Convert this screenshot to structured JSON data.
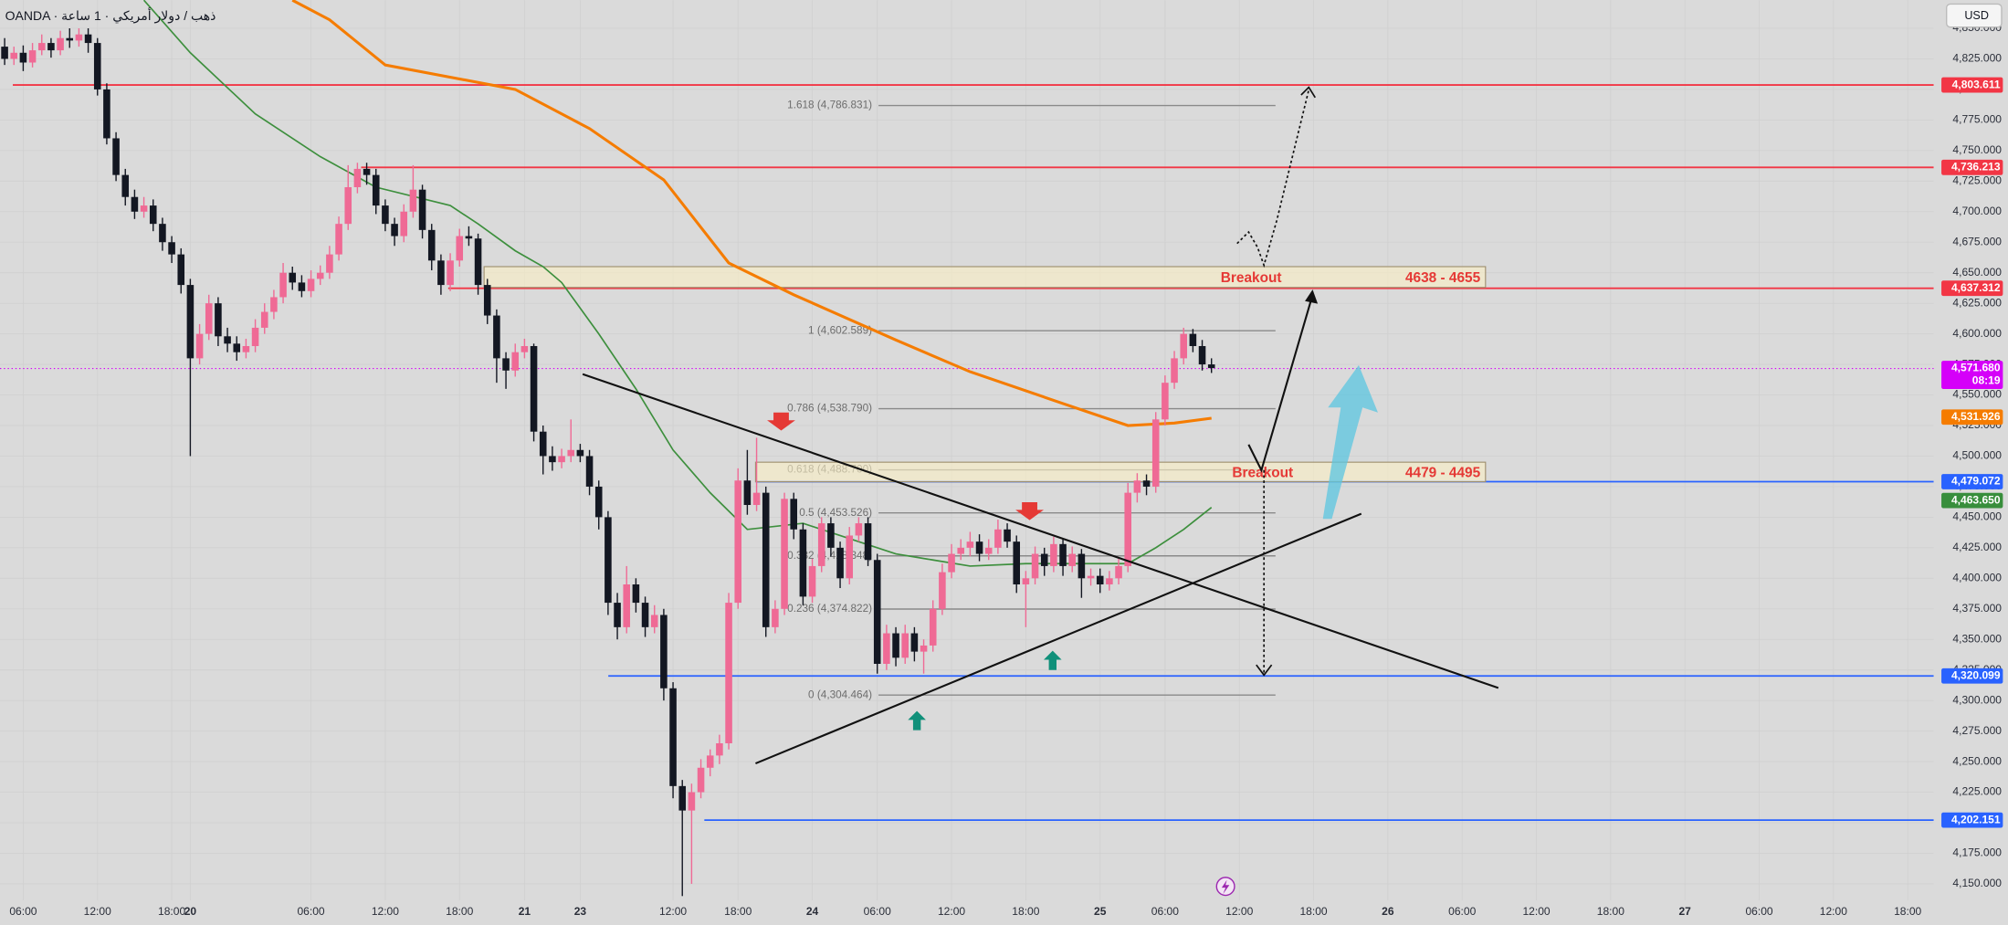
{
  "header": {
    "symbol": "OANDA · ذهب / دولار أمريكي · 1 ساعة",
    "currency": "USD"
  },
  "chart_data": {
    "type": "candlestick",
    "xlim": [
      -0.5,
      207.8
    ],
    "ylim": [
      4136.4,
      4873
    ],
    "xticks": [
      {
        "value": 2,
        "label": "06:00"
      },
      {
        "value": 10,
        "label": "12:00"
      },
      {
        "value": 18,
        "label": "18:00"
      },
      20,
      {
        "value": 33,
        "label": "06:00"
      },
      {
        "value": 41,
        "label": "12:00"
      },
      {
        "value": 49,
        "label": "18:00"
      },
      {
        "value": 56,
        "label": "21"
      },
      {
        "value": 62,
        "label": "23"
      },
      {
        "value": 72,
        "label": "12:00"
      },
      {
        "value": 79,
        "label": "18:00"
      },
      {
        "value": 87,
        "label": "24"
      },
      {
        "value": 94,
        "label": "06:00"
      },
      {
        "value": 102,
        "label": "12:00"
      },
      {
        "value": 110,
        "label": "18:00"
      },
      {
        "value": 118,
        "label": "25"
      },
      {
        "value": 125,
        "label": "06:00"
      },
      {
        "value": 133,
        "label": "12:00"
      },
      {
        "value": 141,
        "label": "18:00"
      },
      {
        "value": 149,
        "label": "26"
      },
      {
        "value": 157,
        "label": "06:00"
      },
      {
        "value": 165,
        "label": "12:00"
      },
      {
        "value": 173,
        "label": "18:00"
      },
      {
        "value": 181,
        "label": "27"
      },
      {
        "value": 189,
        "label": "06:00"
      },
      {
        "value": 197,
        "label": "12:00"
      },
      {
        "value": 205,
        "label": "18:00"
      }
    ],
    "yticks": [
      {
        "value": 4150,
        "label": "4,150.000"
      },
      {
        "value": 4175,
        "label": "4,175.000"
      },
      {
        "value": 4200,
        "label": "4,200.000"
      },
      {
        "value": 4225,
        "label": "4,225.000"
      },
      {
        "value": 4250,
        "label": "4,250.000"
      },
      {
        "value": 4275,
        "label": "4,275.000"
      },
      {
        "value": 4300,
        "label": "4,300.000"
      },
      {
        "value": 4325,
        "label": "4,325.000"
      },
      {
        "value": 4350,
        "label": "4,350.000"
      },
      {
        "value": 4375,
        "label": "4,375.000"
      },
      {
        "value": 4400,
        "label": "4,400.000"
      },
      {
        "value": 4425,
        "label": "4,425.000"
      },
      {
        "value": 4450,
        "label": "4,450.000"
      },
      {
        "value": 4475,
        "label": "4,475.000"
      },
      {
        "value": 4500,
        "label": "4,500.000"
      },
      {
        "value": 4525,
        "label": "4,525.000"
      },
      {
        "value": 4550,
        "label": "4,550.000"
      },
      {
        "value": 4575,
        "label": "4,575.000"
      },
      {
        "value": 4600,
        "label": "4,600.000"
      },
      {
        "value": 4625,
        "label": "4,625.000"
      },
      {
        "value": 4650,
        "label": "4,650.000"
      },
      {
        "value": 4675,
        "label": "4,675.000"
      },
      {
        "value": 4700,
        "label": "4,700.000"
      },
      {
        "value": 4725,
        "label": "4,725.000"
      },
      {
        "value": 4750,
        "label": "4,750.000"
      },
      {
        "value": 4775,
        "label": "4,775.000"
      },
      {
        "value": 4800,
        "label": "4,800.000"
      },
      {
        "value": 4825,
        "label": "4,825.000"
      },
      {
        "value": 4850,
        "label": "4,850.000"
      }
    ],
    "grid": true,
    "up_color": "#ef6a95",
    "down_color": "#131722",
    "ohlc": [
      [
        4835,
        4842,
        4820,
        4825
      ],
      [
        4825,
        4835,
        4820,
        4830
      ],
      [
        4830,
        4836,
        4815,
        4822
      ],
      [
        4822,
        4838,
        4818,
        4832
      ],
      [
        4832,
        4845,
        4828,
        4838
      ],
      [
        4838,
        4842,
        4826,
        4832
      ],
      [
        4832,
        4848,
        4828,
        4842
      ],
      [
        4842,
        4850,
        4834,
        4840
      ],
      [
        4840,
        4850,
        4835,
        4845
      ],
      [
        4845,
        4850,
        4830,
        4838
      ],
      [
        4838,
        4842,
        4795,
        4800
      ],
      [
        4800,
        4805,
        4755,
        4760
      ],
      [
        4760,
        4765,
        4725,
        4730
      ],
      [
        4730,
        4735,
        4705,
        4712
      ],
      [
        4712,
        4718,
        4694,
        4700
      ],
      [
        4700,
        4712,
        4695,
        4705
      ],
      [
        4705,
        4710,
        4684,
        4690
      ],
      [
        4690,
        4695,
        4668,
        4675
      ],
      [
        4675,
        4680,
        4658,
        4665
      ],
      [
        4665,
        4670,
        4633,
        4640
      ],
      [
        4640,
        4645,
        4500,
        4580
      ],
      [
        4580,
        4608,
        4575,
        4600
      ],
      [
        4600,
        4632,
        4595,
        4625
      ],
      [
        4625,
        4630,
        4590,
        4598
      ],
      [
        4598,
        4605,
        4585,
        4592
      ],
      [
        4592,
        4598,
        4578,
        4585
      ],
      [
        4585,
        4596,
        4580,
        4590
      ],
      [
        4590,
        4612,
        4585,
        4605
      ],
      [
        4605,
        4625,
        4600,
        4618
      ],
      [
        4618,
        4636,
        4612,
        4630
      ],
      [
        4630,
        4658,
        4625,
        4650
      ],
      [
        4650,
        4655,
        4636,
        4642
      ],
      [
        4642,
        4648,
        4630,
        4635
      ],
      [
        4635,
        4652,
        4630,
        4645
      ],
      [
        4645,
        4656,
        4640,
        4650
      ],
      [
        4650,
        4672,
        4645,
        4665
      ],
      [
        4665,
        4696,
        4660,
        4690
      ],
      [
        4690,
        4738,
        4685,
        4720
      ],
      [
        4720,
        4740,
        4715,
        4735
      ],
      [
        4735,
        4740,
        4722,
        4730
      ],
      [
        4730,
        4735,
        4698,
        4705
      ],
      [
        4705,
        4710,
        4684,
        4690
      ],
      [
        4690,
        4695,
        4672,
        4680
      ],
      [
        4680,
        4706,
        4675,
        4700
      ],
      [
        4700,
        4738,
        4695,
        4718
      ],
      [
        4718,
        4722,
        4678,
        4685
      ],
      [
        4685,
        4690,
        4652,
        4660
      ],
      [
        4660,
        4665,
        4632,
        4640
      ],
      [
        4640,
        4666,
        4635,
        4660
      ],
      [
        4660,
        4686,
        4655,
        4680
      ],
      [
        4680,
        4688,
        4672,
        4678
      ],
      [
        4678,
        4682,
        4632,
        4640
      ],
      [
        4640,
        4645,
        4608,
        4615
      ],
      [
        4615,
        4620,
        4560,
        4580
      ],
      [
        4580,
        4585,
        4555,
        4570
      ],
      [
        4570,
        4592,
        4565,
        4585
      ],
      [
        4585,
        4596,
        4580,
        4590
      ],
      [
        4590,
        4592,
        4512,
        4520
      ],
      [
        4520,
        4525,
        4485,
        4500
      ],
      [
        4500,
        4508,
        4488,
        4495
      ],
      [
        4495,
        4506,
        4490,
        4500
      ],
      [
        4500,
        4530,
        4495,
        4505
      ],
      [
        4505,
        4510,
        4495,
        4500
      ],
      [
        4500,
        4505,
        4468,
        4475
      ],
      [
        4475,
        4480,
        4440,
        4450
      ],
      [
        4450,
        4455,
        4370,
        4380
      ],
      [
        4380,
        4388,
        4350,
        4360
      ],
      [
        4360,
        4410,
        4355,
        4395
      ],
      [
        4395,
        4400,
        4372,
        4380
      ],
      [
        4380,
        4385,
        4352,
        4360
      ],
      [
        4360,
        4378,
        4355,
        4370
      ],
      [
        4370,
        4375,
        4300,
        4310
      ],
      [
        4310,
        4315,
        4220,
        4230
      ],
      [
        4230,
        4235,
        4140,
        4210
      ],
      [
        4210,
        4232,
        4150,
        4225
      ],
      [
        4225,
        4252,
        4220,
        4245
      ],
      [
        4245,
        4260,
        4238,
        4255
      ],
      [
        4255,
        4272,
        4248,
        4265
      ],
      [
        4265,
        4388,
        4260,
        4380
      ],
      [
        4380,
        4490,
        4375,
        4480
      ],
      [
        4480,
        4505,
        4452,
        4460
      ],
      [
        4460,
        4515,
        4455,
        4470
      ],
      [
        4470,
        4475,
        4352,
        4360
      ],
      [
        4360,
        4382,
        4355,
        4375
      ],
      [
        4375,
        4470,
        4370,
        4465
      ],
      [
        4465,
        4470,
        4432,
        4440
      ],
      [
        4440,
        4445,
        4378,
        4385
      ],
      [
        4385,
        4416,
        4380,
        4410
      ],
      [
        4410,
        4450,
        4405,
        4445
      ],
      [
        4445,
        4450,
        4418,
        4425
      ],
      [
        4425,
        4430,
        4392,
        4400
      ],
      [
        4400,
        4442,
        4395,
        4435
      ],
      [
        4435,
        4450,
        4430,
        4445
      ],
      [
        4445,
        4450,
        4410,
        4415
      ],
      [
        4415,
        4420,
        4322,
        4330
      ],
      [
        4330,
        4362,
        4325,
        4355
      ],
      [
        4355,
        4360,
        4328,
        4335
      ],
      [
        4335,
        4362,
        4330,
        4355
      ],
      [
        4355,
        4360,
        4332,
        4340
      ],
      [
        4340,
        4350,
        4322,
        4345
      ],
      [
        4345,
        4382,
        4340,
        4375
      ],
      [
        4375,
        4412,
        4370,
        4405
      ],
      [
        4405,
        4428,
        4400,
        4420
      ],
      [
        4420,
        4432,
        4415,
        4425
      ],
      [
        4425,
        4438,
        4418,
        4430
      ],
      [
        4430,
        4436,
        4414,
        4420
      ],
      [
        4420,
        4432,
        4415,
        4425
      ],
      [
        4425,
        4448,
        4420,
        4440
      ],
      [
        4440,
        4445,
        4425,
        4430
      ],
      [
        4430,
        4435,
        4388,
        4395
      ],
      [
        4395,
        4406,
        4360,
        4400
      ],
      [
        4400,
        4426,
        4395,
        4420
      ],
      [
        4420,
        4425,
        4402,
        4410
      ],
      [
        4410,
        4434,
        4405,
        4428
      ],
      [
        4428,
        4432,
        4402,
        4410
      ],
      [
        4410,
        4426,
        4405,
        4420
      ],
      [
        4420,
        4424,
        4384,
        4400
      ],
      [
        4400,
        4408,
        4394,
        4402
      ],
      [
        4402,
        4408,
        4388,
        4395
      ],
      [
        4395,
        4406,
        4390,
        4400
      ],
      [
        4400,
        4416,
        4395,
        4410
      ],
      [
        4410,
        4478,
        4405,
        4470
      ],
      [
        4470,
        4486,
        4462,
        4480
      ],
      [
        4480,
        4485,
        4468,
        4475
      ],
      [
        4475,
        4536,
        4470,
        4530
      ],
      [
        4530,
        4566,
        4525,
        4560
      ],
      [
        4560,
        4586,
        4555,
        4580
      ],
      [
        4580,
        4605,
        4575,
        4600
      ],
      [
        4600,
        4604,
        4585,
        4590
      ],
      [
        4590,
        4595,
        4570,
        4575
      ],
      [
        4575,
        4580,
        4568,
        4572
      ]
    ],
    "lines": [
      {
        "color": "#f57c00",
        "x": [
          31,
          35,
          41,
          55,
          63,
          71,
          78,
          85,
          96,
          104,
          114,
          121,
          126,
          130
        ],
        "values": [
          4873,
          4857,
          4820,
          4800,
          4768,
          4726,
          4658,
          4632,
          4595,
          4569,
          4543,
          4525,
          4527,
          4531
        ]
      },
      {
        "color": "#3d8f3d",
        "x": [
          15,
          20,
          27,
          34,
          40,
          48,
          51,
          55,
          58,
          60,
          64,
          68,
          72,
          76,
          80,
          86,
          92,
          96,
          100,
          104,
          110,
          114,
          118,
          121,
          124,
          127,
          130
        ],
        "values": [
          4873,
          4830,
          4780,
          4745,
          4720,
          4705,
          4690,
          4668,
          4655,
          4642,
          4600,
          4555,
          4505,
          4470,
          4440,
          4445,
          4430,
          4420,
          4415,
          4410,
          4412,
          4412,
          4412,
          4412,
          4425,
          4440,
          4458
        ]
      }
    ],
    "price_labels": [
      {
        "value": 4803.611,
        "label": "4,803.611",
        "color": "#f23645"
      },
      {
        "value": 4736.213,
        "label": "4,736.213",
        "color": "#f23645"
      },
      {
        "value": 4637.312,
        "label": "4,637.312",
        "color": "#f23645"
      },
      {
        "value": 4479.072,
        "label": "4,479.072",
        "color": "#2962ff"
      },
      {
        "value": 4320.099,
        "label": "4,320.099",
        "color": "#2962ff"
      },
      {
        "value": 4202.151,
        "label": "4,202.151",
        "color": "#2962ff"
      },
      {
        "value": 4571.68,
        "label": "4,571.680",
        "color": "#d500f9",
        "countdown": "08:19"
      },
      {
        "value": 4531.926,
        "label": "4,531.926",
        "color": "#f57c00"
      },
      {
        "value": 4463.65,
        "label": "4,463.650",
        "color": "#388e3c"
      }
    ],
    "fib": {
      "color": "#8a8a8a",
      "levels": [
        {
          "value": 4786.831,
          "label": "1.618 (4,786.831)"
        },
        {
          "value": 4602.589,
          "label": "1 (4,602.589)"
        },
        {
          "value": 4538.79,
          "label": "0.786 (4,538.790)"
        },
        {
          "value": 4488.7,
          "label": "0.618 (4,488.700)"
        },
        {
          "value": 4453.526,
          "label": "0.5 (4,453.526)"
        },
        {
          "value": 4418.348,
          "label": "0.382 (4,418.348)"
        },
        {
          "value": 4374.822,
          "label": "0.236 (4,374.822)"
        },
        {
          "value": 4304.464,
          "label": "0 (4,304.464)"
        }
      ]
    },
    "zones": [
      {
        "low": 4638,
        "high": 4655,
        "label": "Breakout",
        "range_label": "4638 - 4655"
      },
      {
        "low": 4479,
        "high": 4495,
        "label": "Breakout",
        "range_label": "4479 - 4495"
      }
    ]
  }
}
